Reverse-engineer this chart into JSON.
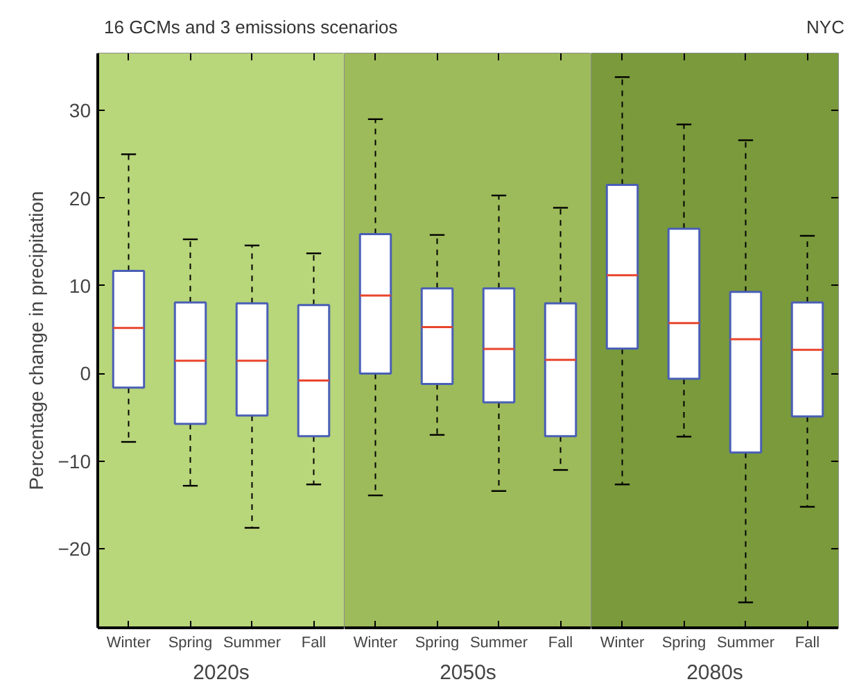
{
  "chart_data": [
    {
      "type": "box",
      "title": "16 GCMs and 3 emissions scenarios",
      "ylabel": "Percentage change in precipitation",
      "xlabel": "2020s",
      "categories": [
        "Winter",
        "Spring",
        "Summer",
        "Fall"
      ],
      "ylim": [
        -29,
        36.5
      ],
      "yticks": [
        {
          "value": -20,
          "label": "−20"
        },
        {
          "value": -10,
          "label": "−10"
        },
        0,
        10,
        20,
        30
      ],
      "bands": [
        {
          "axis": "x",
          "from": "Winter",
          "to": "Fall",
          "color": "#b8d67a"
        }
      ],
      "boxes": [
        {
          "low": -7.8,
          "q1": -1.6,
          "median": 5.2,
          "q3": 11.7,
          "high": 25.0
        },
        {
          "low": -12.8,
          "q1": -5.75,
          "median": 1.45,
          "q3": 8.1,
          "high": 15.3
        },
        {
          "low": -17.6,
          "q1": -4.8,
          "median": 1.45,
          "q3": 8.0,
          "high": 14.6
        },
        {
          "low": -12.65,
          "q1": -7.15,
          "median": -0.8,
          "q3": 7.8,
          "high": 13.7
        }
      ]
    },
    {
      "type": "box",
      "xlabel": "2050s",
      "categories": [
        "Winter",
        "Spring",
        "Summer",
        "Fall"
      ],
      "ylim": [
        -29,
        36.5
      ],
      "tick_labels": "x",
      "bands": [
        {
          "axis": "x",
          "from": "Winter",
          "to": "Fall",
          "color": "#9dbb5a"
        }
      ],
      "boxes": [
        {
          "low": -13.9,
          "q1": 0.0,
          "median": 8.9,
          "q3": 15.9,
          "high": 29.0
        },
        {
          "low": -7.0,
          "q1": -1.2,
          "median": 5.3,
          "q3": 9.7,
          "high": 15.8
        },
        {
          "low": -13.4,
          "q1": -3.3,
          "median": 2.8,
          "q3": 9.7,
          "high": 20.3
        },
        {
          "low": -11.0,
          "q1": -7.15,
          "median": 1.55,
          "q3": 8.0,
          "high": 18.9
        }
      ]
    },
    {
      "type": "box",
      "xlabel": "2080s",
      "annotations": [
        "NYC"
      ],
      "categories": [
        "Winter",
        "Spring",
        "Summer",
        "Fall"
      ],
      "ylim": [
        -29,
        36.5
      ],
      "tick_labels": "x",
      "bands": [
        {
          "axis": "x",
          "from": "Winter",
          "to": "Fall",
          "color": "#7a9a3c"
        }
      ],
      "boxes": [
        {
          "low": -12.65,
          "q1": 2.85,
          "median": 11.2,
          "q3": 21.5,
          "high": 33.8
        },
        {
          "low": -7.2,
          "q1": -0.6,
          "median": 5.75,
          "q3": 16.5,
          "high": 28.4
        },
        {
          "low": -26.1,
          "q1": -9.0,
          "median": 3.9,
          "q3": 9.3,
          "high": 26.6
        },
        {
          "low": -15.2,
          "q1": -4.9,
          "median": 2.7,
          "q3": 8.1,
          "high": 15.7
        }
      ]
    }
  ]
}
